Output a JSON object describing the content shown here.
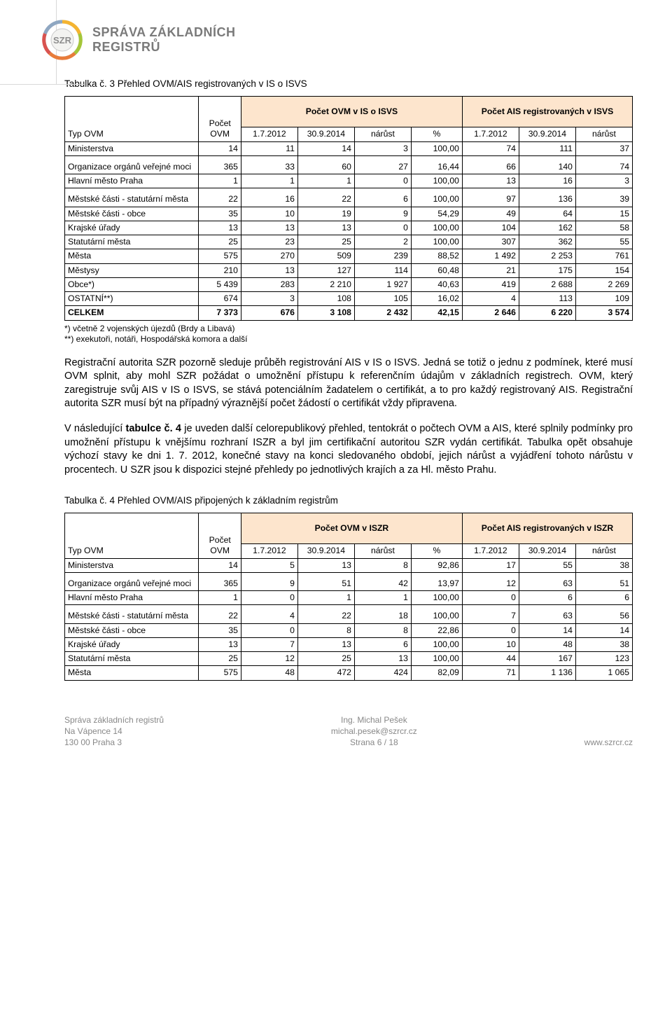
{
  "brand": {
    "line1": "SPRÁVA ZÁKLADNÍCH",
    "line2": "REGISTRŮ",
    "badge": "SZR"
  },
  "caption1": "Tabulka č. 3 Přehled OVM/AIS registrovaných v IS o ISVS",
  "table1": {
    "col_widths": [
      "22%",
      "6.5%",
      "9%",
      "9%",
      "9%",
      "8%",
      "9%",
      "9%",
      "9%"
    ],
    "hdr_group_colors": {
      "bg": "#fde5cd"
    },
    "head": {
      "type_ovm": "Typ OVM",
      "pocet_ovm": "Počet OVM",
      "group1": "Počet OVM v IS o ISVS",
      "group2": "Počet AIS registrovaných v ISVS",
      "sub": [
        "1.7.2012",
        "30.9.2014",
        "nárůst",
        "%",
        "1.7.2012",
        "30.9.2014",
        "nárůst"
      ]
    },
    "rows": [
      {
        "label": "Ministerstva",
        "v": [
          "14",
          "11",
          "14",
          "3",
          "100,00",
          "74",
          "111",
          "37"
        ]
      },
      {
        "label": "Organizace orgánů veřejné moci",
        "v": [
          "365",
          "33",
          "60",
          "27",
          "16,44",
          "66",
          "140",
          "74"
        ],
        "tall": true
      },
      {
        "label": "Hlavní město Praha",
        "v": [
          "1",
          "1",
          "1",
          "0",
          "100,00",
          "13",
          "16",
          "3"
        ]
      },
      {
        "label": "Městské části - statutární města",
        "v": [
          "22",
          "16",
          "22",
          "6",
          "100,00",
          "97",
          "136",
          "39"
        ],
        "tall": true
      },
      {
        "label": "Městské části - obce",
        "v": [
          "35",
          "10",
          "19",
          "9",
          "54,29",
          "49",
          "64",
          "15"
        ]
      },
      {
        "label": "Krajské úřady",
        "v": [
          "13",
          "13",
          "13",
          "0",
          "100,00",
          "104",
          "162",
          "58"
        ]
      },
      {
        "label": "Statutární města",
        "v": [
          "25",
          "23",
          "25",
          "2",
          "100,00",
          "307",
          "362",
          "55"
        ]
      },
      {
        "label": "Města",
        "v": [
          "575",
          "270",
          "509",
          "239",
          "88,52",
          "1 492",
          "2 253",
          "761"
        ]
      },
      {
        "label": "Městysy",
        "v": [
          "210",
          "13",
          "127",
          "114",
          "60,48",
          "21",
          "175",
          "154"
        ]
      },
      {
        "label": "Obce*)",
        "v": [
          "5 439",
          "283",
          "2 210",
          "1 927",
          "40,63",
          "419",
          "2 688",
          "2 269"
        ]
      },
      {
        "label": "OSTATNÍ**)",
        "v": [
          "674",
          "3",
          "108",
          "105",
          "16,02",
          "4",
          "113",
          "109"
        ]
      },
      {
        "label": "CELKEM",
        "v": [
          "7 373",
          "676",
          "3 108",
          "2 432",
          "42,15",
          "2 646",
          "6 220",
          "3 574"
        ],
        "bold": true
      }
    ]
  },
  "footnote1": "*) včetně 2 vojenských újezdů (Brdy a Libavá)",
  "footnote2": "**) exekutoři, notáři, Hospodářská komora a další",
  "para1": "Registrační autorita SZR pozorně sleduje průběh registrování AIS v IS o ISVS. Jedná se totiž o jednu z podmínek, které musí OVM splnit, aby mohl SZR požádat o umožnění přístupu k referenčním údajům v základních registrech. OVM, který zaregistruje svůj AIS v IS o ISVS, se stává potenciálním žadatelem o certifikát, a to pro každý registrovaný AIS. Registrační autorita SZR musí být na případný výraznější počet žádostí o certifikát vždy připravena.",
  "para2_prefix": "V následující ",
  "para2_bold": "tabulce č. 4",
  "para2_rest": " je uveden další celorepublikový přehled, tentokrát o počtech OVM a AIS, které splnily podmínky pro umožnění přístupu k vnějšímu rozhraní ISZR a byl jim certifikační autoritou SZR vydán certifikát.  Tabulka opět obsahuje výchozí stavy ke dni 1. 7. 2012, konečné stavy na konci sledovaného období, jejich nárůst a vyjádření tohoto nárůstu v procentech.  U SZR jsou k dispozici stejné přehledy po jednotlivých krajích a za Hl. město Prahu.",
  "caption2": "Tabulka č. 4 Přehled OVM/AIS připojených k základním registrům",
  "table2": {
    "head": {
      "type_ovm": "Typ OVM",
      "pocet_ovm": "Počet OVM",
      "group1": "Počet OVM v ISZR",
      "group2": "Počet AIS registrovaných v ISZR",
      "sub": [
        "1.7.2012",
        "30.9.2014",
        "nárůst",
        "%",
        "1.7.2012",
        "30.9.2014",
        "nárůst"
      ]
    },
    "rows": [
      {
        "label": "Ministerstva",
        "v": [
          "14",
          "5",
          "13",
          "8",
          "92,86",
          "17",
          "55",
          "38"
        ]
      },
      {
        "label": "Organizace orgánů veřejné moci",
        "v": [
          "365",
          "9",
          "51",
          "42",
          "13,97",
          "12",
          "63",
          "51"
        ],
        "tall": true
      },
      {
        "label": "Hlavní město Praha",
        "v": [
          "1",
          "0",
          "1",
          "1",
          "100,00",
          "0",
          "6",
          "6"
        ]
      },
      {
        "label": "Městské části - statutární města",
        "v": [
          "22",
          "4",
          "22",
          "18",
          "100,00",
          "7",
          "63",
          "56"
        ],
        "tall": true
      },
      {
        "label": "Městské části - obce",
        "v": [
          "35",
          "0",
          "8",
          "8",
          "22,86",
          "0",
          "14",
          "14"
        ]
      },
      {
        "label": "Krajské úřady",
        "v": [
          "13",
          "7",
          "13",
          "6",
          "100,00",
          "10",
          "48",
          "38"
        ]
      },
      {
        "label": "Statutární města",
        "v": [
          "25",
          "12",
          "25",
          "13",
          "100,00",
          "44",
          "167",
          "123"
        ]
      },
      {
        "label": "Města",
        "v": [
          "575",
          "48",
          "472",
          "424",
          "82,09",
          "71",
          "1 136",
          "1 065"
        ]
      }
    ]
  },
  "footer": {
    "left1": "Správa základních registrů",
    "left2": "Na Vápence 14",
    "left3": "130 00 Praha 3",
    "mid1": "Ing. Michal Pešek",
    "mid2": "michal.pesek@szrcr.cz",
    "mid3": "Strana 6 / 18",
    "right": "www.szrcr.cz"
  },
  "logo_colors": [
    "#f4b431",
    "#a4c639",
    "#e87c3b",
    "#d9534f",
    "#8fa7c2"
  ]
}
